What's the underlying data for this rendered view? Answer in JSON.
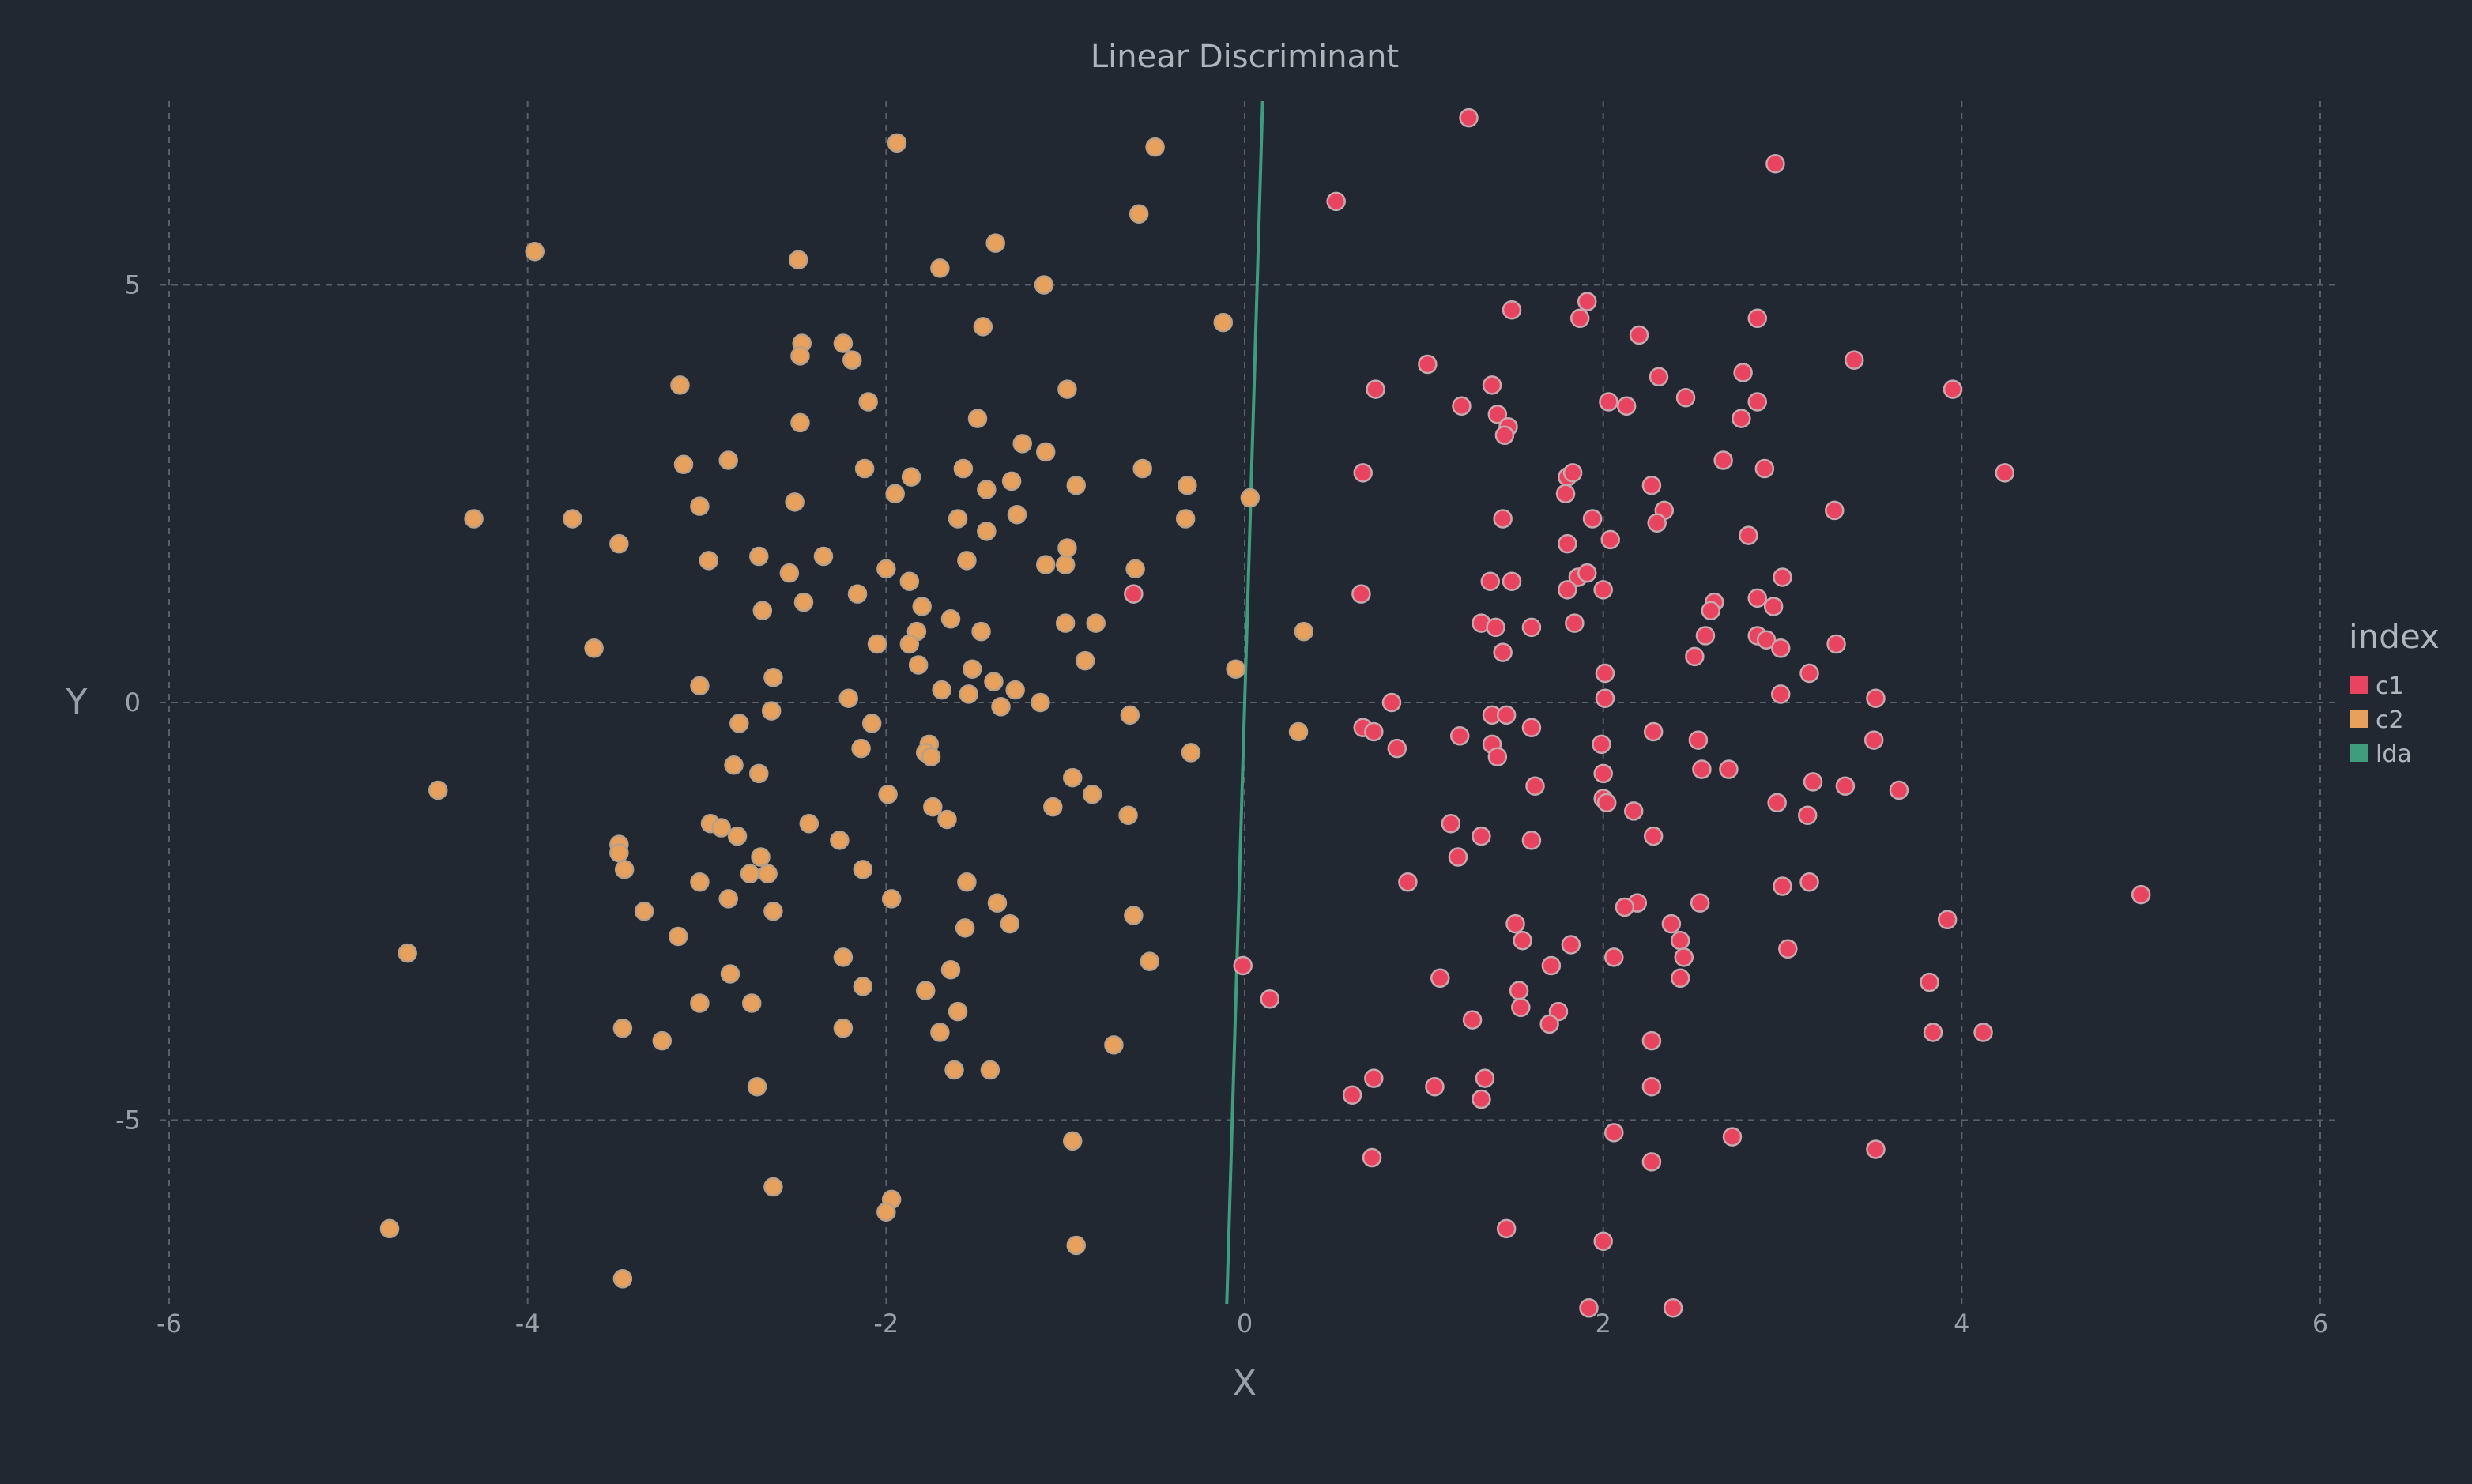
{
  "chart_data": {
    "type": "scatter",
    "title": "Linear Discriminant",
    "xlabel": "X",
    "ylabel": "Y",
    "xlim": [
      -6,
      6
    ],
    "ylim": [
      -7.2,
      7.2
    ],
    "x_ticks": [
      -6,
      -4,
      -2,
      0,
      2,
      4,
      6
    ],
    "y_ticks": [
      5,
      0,
      -5
    ],
    "grid": true,
    "legend": {
      "title": "index",
      "placement": "right",
      "entries": [
        "c1",
        "c2",
        "lda"
      ]
    },
    "colors": {
      "background": "#222831",
      "c1": "#e8445f",
      "c2": "#e8a15c",
      "lda": "#3f9c7c",
      "grid": "#5a6069"
    },
    "series": [
      {
        "name": "c1",
        "color": "#e8445f",
        "points": [
          [
            0.51,
            6.0
          ],
          [
            1.25,
            7.0
          ],
          [
            2.96,
            6.45
          ],
          [
            1.49,
            4.7
          ],
          [
            1.91,
            4.8
          ],
          [
            1.87,
            4.6
          ],
          [
            2.2,
            4.4
          ],
          [
            2.86,
            4.6
          ],
          [
            3.4,
            4.1
          ],
          [
            1.02,
            4.05
          ],
          [
            1.38,
            3.8
          ],
          [
            0.73,
            3.75
          ],
          [
            2.31,
            3.9
          ],
          [
            2.78,
            3.95
          ],
          [
            3.95,
            3.75
          ],
          [
            1.21,
            3.55
          ],
          [
            2.03,
            3.6
          ],
          [
            2.13,
            3.55
          ],
          [
            2.46,
            3.65
          ],
          [
            2.86,
            3.6
          ],
          [
            1.41,
            3.45
          ],
          [
            1.47,
            3.3
          ],
          [
            1.45,
            3.2
          ],
          [
            2.77,
            3.4
          ],
          [
            2.67,
            2.9
          ],
          [
            0.66,
            2.75
          ],
          [
            1.8,
            2.7
          ],
          [
            1.83,
            2.75
          ],
          [
            1.79,
            2.5
          ],
          [
            2.9,
            2.8
          ],
          [
            4.24,
            2.75
          ],
          [
            2.27,
            2.6
          ],
          [
            2.34,
            2.3
          ],
          [
            3.29,
            2.3
          ],
          [
            1.44,
            2.2
          ],
          [
            1.94,
            2.2
          ],
          [
            2.3,
            2.15
          ],
          [
            1.8,
            1.9
          ],
          [
            2.04,
            1.95
          ],
          [
            2.81,
            2.0
          ],
          [
            1.37,
            1.45
          ],
          [
            1.49,
            1.45
          ],
          [
            1.86,
            1.5
          ],
          [
            1.91,
            1.55
          ],
          [
            3.0,
            1.5
          ],
          [
            0.65,
            1.3
          ],
          [
            1.8,
            1.35
          ],
          [
            2.0,
            1.35
          ],
          [
            2.62,
            1.2
          ],
          [
            2.86,
            1.25
          ],
          [
            2.95,
            1.15
          ],
          [
            2.6,
            1.1
          ],
          [
            1.32,
            0.95
          ],
          [
            1.84,
            0.95
          ],
          [
            1.4,
            0.9
          ],
          [
            1.6,
            0.9
          ],
          [
            2.57,
            0.8
          ],
          [
            2.86,
            0.8
          ],
          [
            2.91,
            0.75
          ],
          [
            1.44,
            0.6
          ],
          [
            2.99,
            0.65
          ],
          [
            3.3,
            0.7
          ],
          [
            2.51,
            0.55
          ],
          [
            2.01,
            0.35
          ],
          [
            3.15,
            0.35
          ],
          [
            0.82,
            0.0
          ],
          [
            2.01,
            0.05
          ],
          [
            2.99,
            0.1
          ],
          [
            3.52,
            0.05
          ],
          [
            1.38,
            -0.15
          ],
          [
            1.46,
            -0.15
          ],
          [
            0.66,
            -0.3
          ],
          [
            0.72,
            -0.35
          ],
          [
            1.2,
            -0.4
          ],
          [
            1.6,
            -0.3
          ],
          [
            2.28,
            -0.35
          ],
          [
            0.85,
            -0.55
          ],
          [
            1.38,
            -0.5
          ],
          [
            1.41,
            -0.65
          ],
          [
            1.99,
            -0.5
          ],
          [
            2.53,
            -0.45
          ],
          [
            3.51,
            -0.45
          ],
          [
            2.55,
            -0.8
          ],
          [
            2.7,
            -0.8
          ],
          [
            2.0,
            -0.85
          ],
          [
            1.62,
            -1.0
          ],
          [
            3.17,
            -0.95
          ],
          [
            3.35,
            -1.0
          ],
          [
            3.65,
            -1.05
          ],
          [
            2.0,
            -1.15
          ],
          [
            2.02,
            -1.2
          ],
          [
            2.97,
            -1.2
          ],
          [
            2.17,
            -1.3
          ],
          [
            3.14,
            -1.35
          ],
          [
            1.15,
            -1.45
          ],
          [
            2.28,
            -1.6
          ],
          [
            1.32,
            -1.6
          ],
          [
            1.6,
            -1.65
          ],
          [
            1.19,
            -1.85
          ],
          [
            0.91,
            -2.15
          ],
          [
            3.15,
            -2.15
          ],
          [
            3.0,
            -2.2
          ],
          [
            2.19,
            -2.4
          ],
          [
            2.12,
            -2.45
          ],
          [
            2.54,
            -2.4
          ],
          [
            2.38,
            -2.65
          ],
          [
            1.51,
            -2.65
          ],
          [
            3.92,
            -2.6
          ],
          [
            1.55,
            -2.85
          ],
          [
            1.82,
            -2.9
          ],
          [
            2.43,
            -2.85
          ],
          [
            2.45,
            -3.05
          ],
          [
            3.03,
            -2.95
          ],
          [
            2.06,
            -3.05
          ],
          [
            1.71,
            -3.15
          ],
          [
            1.09,
            -3.3
          ],
          [
            2.43,
            -3.3
          ],
          [
            1.53,
            -3.45
          ],
          [
            3.82,
            -3.35
          ],
          [
            1.54,
            -3.65
          ],
          [
            1.75,
            -3.7
          ],
          [
            1.27,
            -3.8
          ],
          [
            1.7,
            -3.85
          ],
          [
            3.84,
            -3.95
          ],
          [
            4.12,
            -3.95
          ],
          [
            2.27,
            -4.05
          ],
          [
            0.72,
            -4.5
          ],
          [
            1.34,
            -4.5
          ],
          [
            0.6,
            -4.7
          ],
          [
            1.06,
            -4.6
          ],
          [
            1.32,
            -4.75
          ],
          [
            2.27,
            -4.6
          ],
          [
            2.06,
            -5.15
          ],
          [
            2.72,
            -5.2
          ],
          [
            3.52,
            -5.35
          ],
          [
            0.71,
            -5.45
          ],
          [
            2.27,
            -5.5
          ],
          [
            1.46,
            -6.3
          ],
          [
            2.0,
            -6.45
          ],
          [
            -0.01,
            -3.15
          ],
          [
            0.14,
            -3.55
          ],
          [
            -0.62,
            1.3
          ],
          [
            5.0,
            -2.3
          ],
          [
            1.92,
            -7.25
          ],
          [
            2.39,
            -7.25
          ]
        ]
      },
      {
        "name": "c2",
        "color": "#e8a15c",
        "points": [
          [
            -1.94,
            6.7
          ],
          [
            -0.5,
            6.65
          ],
          [
            -3.96,
            5.4
          ],
          [
            -2.49,
            5.3
          ],
          [
            -1.7,
            5.2
          ],
          [
            -1.39,
            5.5
          ],
          [
            -0.59,
            5.85
          ],
          [
            -1.12,
            5.0
          ],
          [
            -0.12,
            4.55
          ],
          [
            -1.46,
            4.5
          ],
          [
            -2.47,
            4.3
          ],
          [
            -2.24,
            4.3
          ],
          [
            -2.48,
            4.15
          ],
          [
            -2.19,
            4.1
          ],
          [
            -3.15,
            3.8
          ],
          [
            -0.99,
            3.75
          ],
          [
            -2.1,
            3.6
          ],
          [
            -2.48,
            3.35
          ],
          [
            -1.49,
            3.4
          ],
          [
            -1.24,
            3.1
          ],
          [
            -1.11,
            3.0
          ],
          [
            -3.13,
            2.85
          ],
          [
            -2.88,
            2.9
          ],
          [
            -1.57,
            2.8
          ],
          [
            -0.57,
            2.8
          ],
          [
            -2.12,
            2.8
          ],
          [
            -1.86,
            2.7
          ],
          [
            -1.3,
            2.65
          ],
          [
            -0.94,
            2.6
          ],
          [
            -0.32,
            2.6
          ],
          [
            -1.95,
            2.5
          ],
          [
            -1.44,
            2.55
          ],
          [
            0.03,
            2.45
          ],
          [
            -3.04,
            2.35
          ],
          [
            -2.51,
            2.4
          ],
          [
            -1.6,
            2.2
          ],
          [
            -1.27,
            2.25
          ],
          [
            -0.33,
            2.2
          ],
          [
            -4.3,
            2.2
          ],
          [
            -3.75,
            2.2
          ],
          [
            -1.44,
            2.05
          ],
          [
            -3.49,
            1.9
          ],
          [
            -0.99,
            1.85
          ],
          [
            -2.99,
            1.7
          ],
          [
            -2.71,
            1.75
          ],
          [
            -2.35,
            1.75
          ],
          [
            -1.55,
            1.7
          ],
          [
            -1.11,
            1.65
          ],
          [
            -1.0,
            1.65
          ],
          [
            -0.61,
            1.6
          ],
          [
            -2.54,
            1.55
          ],
          [
            -2.0,
            1.6
          ],
          [
            -1.87,
            1.45
          ],
          [
            -2.16,
            1.3
          ],
          [
            -1.8,
            1.15
          ],
          [
            -2.46,
            1.2
          ],
          [
            -2.69,
            1.1
          ],
          [
            -1.64,
            1.0
          ],
          [
            -1.0,
            0.95
          ],
          [
            -0.83,
            0.95
          ],
          [
            -1.83,
            0.85
          ],
          [
            -1.47,
            0.85
          ],
          [
            -2.05,
            0.7
          ],
          [
            -1.87,
            0.7
          ],
          [
            -3.63,
            0.65
          ],
          [
            -0.89,
            0.5
          ],
          [
            -1.82,
            0.45
          ],
          [
            -1.52,
            0.4
          ],
          [
            -1.4,
            0.25
          ],
          [
            -2.63,
            0.3
          ],
          [
            -3.04,
            0.2
          ],
          [
            -1.69,
            0.15
          ],
          [
            -1.54,
            0.1
          ],
          [
            -1.28,
            0.15
          ],
          [
            -2.21,
            0.05
          ],
          [
            -1.36,
            -0.05
          ],
          [
            -1.14,
            0.0
          ],
          [
            -0.05,
            0.4
          ],
          [
            -2.64,
            -0.1
          ],
          [
            -0.64,
            -0.15
          ],
          [
            -2.82,
            -0.25
          ],
          [
            -2.08,
            -0.25
          ],
          [
            -2.14,
            -0.55
          ],
          [
            -1.76,
            -0.5
          ],
          [
            -1.78,
            -0.6
          ],
          [
            -1.75,
            -0.65
          ],
          [
            -0.3,
            -0.6
          ],
          [
            -2.85,
            -0.75
          ],
          [
            -2.71,
            -0.85
          ],
          [
            -0.96,
            -0.9
          ],
          [
            -4.5,
            -1.05
          ],
          [
            -1.99,
            -1.1
          ],
          [
            -0.85,
            -1.1
          ],
          [
            -1.07,
            -1.25
          ],
          [
            -1.74,
            -1.25
          ],
          [
            -1.66,
            -1.4
          ],
          [
            -0.65,
            -1.35
          ],
          [
            -2.98,
            -1.45
          ],
          [
            -2.92,
            -1.5
          ],
          [
            -2.43,
            -1.45
          ],
          [
            -2.83,
            -1.6
          ],
          [
            -2.26,
            -1.65
          ],
          [
            -3.49,
            -1.7
          ],
          [
            -3.49,
            -1.8
          ],
          [
            -2.7,
            -1.85
          ],
          [
            -3.46,
            -2.0
          ],
          [
            -2.76,
            -2.05
          ],
          [
            -2.66,
            -2.05
          ],
          [
            -2.13,
            -2.0
          ],
          [
            -3.04,
            -2.15
          ],
          [
            -1.55,
            -2.15
          ],
          [
            -2.88,
            -2.35
          ],
          [
            -1.97,
            -2.35
          ],
          [
            -1.38,
            -2.4
          ],
          [
            -3.35,
            -2.5
          ],
          [
            -2.63,
            -2.5
          ],
          [
            -0.62,
            -2.55
          ],
          [
            -1.56,
            -2.7
          ],
          [
            -1.31,
            -2.65
          ],
          [
            -3.16,
            -2.8
          ],
          [
            -4.67,
            -3.0
          ],
          [
            -2.24,
            -3.05
          ],
          [
            -0.53,
            -3.1
          ],
          [
            -1.64,
            -3.2
          ],
          [
            -2.87,
            -3.25
          ],
          [
            -2.13,
            -3.4
          ],
          [
            -1.78,
            -3.45
          ],
          [
            -3.04,
            -3.6
          ],
          [
            -2.75,
            -3.6
          ],
          [
            -1.6,
            -3.7
          ],
          [
            -3.47,
            -3.9
          ],
          [
            -2.24,
            -3.9
          ],
          [
            -1.7,
            -3.95
          ],
          [
            -3.25,
            -4.05
          ],
          [
            -0.73,
            -4.1
          ],
          [
            -1.62,
            -4.4
          ],
          [
            -1.42,
            -4.4
          ],
          [
            -2.72,
            -4.6
          ],
          [
            -0.96,
            -5.25
          ],
          [
            -2.63,
            -5.8
          ],
          [
            -1.97,
            -5.95
          ],
          [
            -2.0,
            -6.1
          ],
          [
            -4.77,
            -6.3
          ],
          [
            -0.94,
            -6.5
          ],
          [
            -3.47,
            -6.9
          ],
          [
            0.33,
            0.85
          ],
          [
            0.3,
            -0.35
          ]
        ]
      },
      {
        "name": "lda",
        "color": "#3f9c7c",
        "points": [
          [
            0.1,
            7.2
          ],
          [
            -0.1,
            -7.2
          ]
        ]
      }
    ]
  }
}
